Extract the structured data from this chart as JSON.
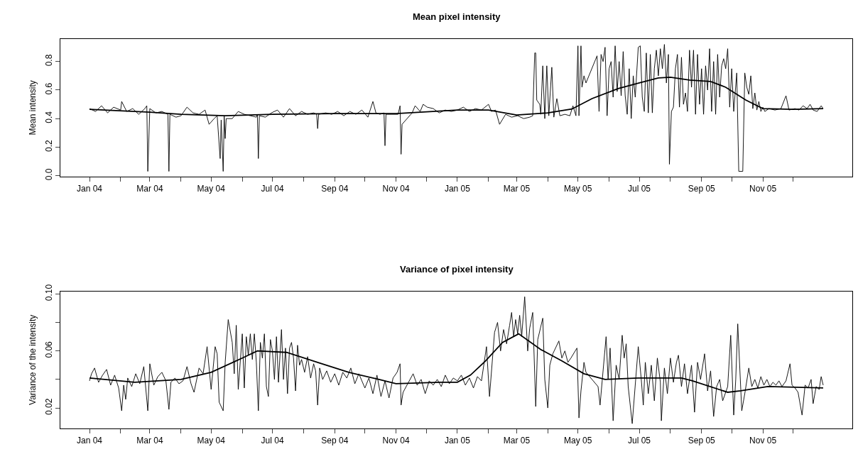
{
  "chart_data": [
    {
      "type": "line",
      "title": "Mean pixel intensity",
      "ylabel": "Mean intensity",
      "xlim": [
        "2003-12-03",
        "2006-01-29"
      ],
      "xticks": [
        {
          "value": "2004-01-01",
          "label": "Jan 04"
        },
        {
          "value": "2004-02-01",
          "label": null
        },
        {
          "value": "2004-03-01",
          "label": "Mar 04"
        },
        {
          "value": "2004-04-01",
          "label": null
        },
        {
          "value": "2004-05-01",
          "label": "May 04"
        },
        {
          "value": "2004-06-01",
          "label": null
        },
        {
          "value": "2004-07-01",
          "label": "Jul 04"
        },
        {
          "value": "2004-08-01",
          "label": null
        },
        {
          "value": "2004-09-01",
          "label": "Sep 04"
        },
        {
          "value": "2004-10-01",
          "label": null
        },
        {
          "value": "2004-11-01",
          "label": "Nov 04"
        },
        {
          "value": "2004-12-01",
          "label": null
        },
        {
          "value": "2005-01-01",
          "label": "Jan 05"
        },
        {
          "value": "2005-02-01",
          "label": null
        },
        {
          "value": "2005-03-01",
          "label": "Mar 05"
        },
        {
          "value": "2005-04-01",
          "label": null
        },
        {
          "value": "2005-05-01",
          "label": "May 05"
        },
        {
          "value": "2005-06-01",
          "label": null
        },
        {
          "value": "2005-07-01",
          "label": "Jul 05"
        },
        {
          "value": "2005-08-01",
          "label": null
        },
        {
          "value": "2005-09-01",
          "label": "Sep 05"
        },
        {
          "value": "2005-10-01",
          "label": null
        },
        {
          "value": "2005-11-01",
          "label": "Nov 05"
        },
        {
          "value": "2005-12-01",
          "label": null
        }
      ],
      "ylim": [
        -0.006,
        0.958
      ],
      "yticks": [
        {
          "value": 0,
          "label": "0.0"
        },
        0.2,
        0.4,
        0.6,
        0.8
      ],
      "series": [
        {
          "color": "#000000",
          "x": [
            "2004-01-01",
            "2004-01-07",
            "2004-01-13",
            "2004-01-19",
            "2004-01-25",
            "2004-02-01",
            "2004-02-02",
            "2004-02-07",
            "2004-02-13",
            "2004-02-19",
            "2004-02-25",
            "2004-02-27",
            "2004-02-28",
            "2004-03-01",
            "2004-03-07",
            "2004-03-13",
            "2004-03-19",
            "2004-03-20",
            "2004-03-21",
            "2004-03-27",
            "2004-04-01",
            "2004-04-07",
            "2004-04-13",
            "2004-04-19",
            "2004-04-25",
            "2004-04-29",
            "2004-05-04",
            "2004-05-07",
            "2004-05-10",
            "2004-05-11",
            "2004-05-13",
            "2004-05-14",
            "2004-05-15",
            "2004-05-16",
            "2004-05-22",
            "2004-05-28",
            "2004-06-03",
            "2004-06-09",
            "2004-06-15",
            "2004-06-16",
            "2004-06-17",
            "2004-06-18",
            "2004-06-24",
            "2004-06-30",
            "2004-07-06",
            "2004-07-12",
            "2004-07-18",
            "2004-07-24",
            "2004-07-30",
            "2004-08-05",
            "2004-08-11",
            "2004-08-14",
            "2004-08-15",
            "2004-08-16",
            "2004-08-23",
            "2004-08-29",
            "2004-09-04",
            "2004-09-10",
            "2004-09-16",
            "2004-09-22",
            "2004-09-28",
            "2004-10-04",
            "2004-10-09",
            "2004-10-12",
            "2004-10-16",
            "2004-10-20",
            "2004-10-21",
            "2004-10-22",
            "2004-10-28",
            "2004-11-03",
            "2004-11-05",
            "2004-11-06",
            "2004-11-07",
            "2004-11-17",
            "2004-11-20",
            "2004-11-25",
            "2004-11-28",
            "2004-12-02",
            "2004-12-08",
            "2004-12-14",
            "2004-12-20",
            "2004-12-26",
            "2005-01-01",
            "2005-01-07",
            "2005-01-13",
            "2005-01-19",
            "2005-01-25",
            "2005-02-01",
            "2005-02-04",
            "2005-02-08",
            "2005-02-12",
            "2005-02-18",
            "2005-02-24",
            "2005-03-02",
            "2005-03-08",
            "2005-03-14",
            "2005-03-17",
            "2005-03-19",
            "2005-03-20",
            "2005-03-21",
            "2005-03-24",
            "2005-03-25",
            "2005-03-27",
            "2005-03-29",
            "2005-03-31",
            "2005-04-02",
            "2005-04-05",
            "2005-04-07",
            "2005-04-10",
            "2005-04-13",
            "2005-04-18",
            "2005-04-23",
            "2005-04-26",
            "2005-04-29",
            "2005-05-01",
            "2005-05-02",
            "2005-05-04",
            "2005-05-05",
            "2005-05-07",
            "2005-05-09",
            "2005-05-20",
            "2005-05-22",
            "2005-05-24",
            "2005-05-26",
            "2005-05-28",
            "2005-05-30",
            "2005-06-01",
            "2005-06-03",
            "2005-06-05",
            "2005-06-07",
            "2005-06-09",
            "2005-06-11",
            "2005-06-13",
            "2005-06-15",
            "2005-06-17",
            "2005-06-19",
            "2005-06-21",
            "2005-06-23",
            "2005-06-25",
            "2005-06-27",
            "2005-06-30",
            "2005-07-02",
            "2005-07-04",
            "2005-07-06",
            "2005-07-08",
            "2005-07-10",
            "2005-07-12",
            "2005-07-14",
            "2005-07-16",
            "2005-07-18",
            "2005-07-20",
            "2005-07-22",
            "2005-07-24",
            "2005-07-26",
            "2005-07-28",
            "2005-07-30",
            "2005-07-31",
            "2005-08-02",
            "2005-08-04",
            "2005-08-06",
            "2005-08-08",
            "2005-08-10",
            "2005-08-12",
            "2005-08-14",
            "2005-08-16",
            "2005-08-18",
            "2005-08-20",
            "2005-08-22",
            "2005-08-24",
            "2005-08-26",
            "2005-08-28",
            "2005-08-30",
            "2005-09-01",
            "2005-09-03",
            "2005-09-05",
            "2005-09-07",
            "2005-09-09",
            "2005-09-11",
            "2005-09-13",
            "2005-09-15",
            "2005-09-17",
            "2005-09-19",
            "2005-09-21",
            "2005-09-23",
            "2005-09-25",
            "2005-09-27",
            "2005-09-29",
            "2005-10-01",
            "2005-10-03",
            "2005-10-06",
            "2005-10-08",
            "2005-10-12",
            "2005-10-14",
            "2005-10-16",
            "2005-10-18",
            "2005-10-20",
            "2005-10-22",
            "2005-10-24",
            "2005-10-26",
            "2005-10-28",
            "2005-10-30",
            "2005-11-01",
            "2005-11-03",
            "2005-11-07",
            "2005-11-13",
            "2005-11-19",
            "2005-11-24",
            "2005-11-27",
            "2005-12-03",
            "2005-12-07",
            "2005-12-11",
            "2005-12-15",
            "2005-12-18",
            "2005-12-21",
            "2005-12-25",
            "2005-12-29",
            "2005-12-31"
          ],
          "values": [
            0.47,
            0.45,
            0.49,
            0.44,
            0.48,
            0.46,
            0.52,
            0.45,
            0.47,
            0.43,
            0.47,
            0.49,
            0.03,
            0.47,
            0.44,
            0.45,
            0.43,
            0.03,
            0.43,
            0.41,
            0.42,
            0.48,
            0.44,
            0.43,
            0.46,
            0.36,
            0.4,
            0.42,
            0.12,
            0.39,
            0.03,
            0.42,
            0.26,
            0.4,
            0.4,
            0.45,
            0.43,
            0.42,
            0.41,
            0.43,
            0.12,
            0.42,
            0.41,
            0.44,
            0.46,
            0.41,
            0.47,
            0.42,
            0.45,
            0.43,
            0.44,
            0.43,
            0.33,
            0.43,
            0.44,
            0.43,
            0.45,
            0.42,
            0.45,
            0.43,
            0.46,
            0.41,
            0.52,
            0.44,
            0.43,
            0.44,
            0.21,
            0.43,
            0.43,
            0.43,
            0.49,
            0.15,
            0.36,
            0.44,
            0.49,
            0.45,
            0.5,
            0.48,
            0.47,
            0.44,
            0.46,
            0.45,
            0.46,
            0.48,
            0.45,
            0.47,
            0.46,
            0.5,
            0.45,
            0.46,
            0.36,
            0.43,
            0.41,
            0.42,
            0.4,
            0.41,
            0.42,
            0.86,
            0.86,
            0.53,
            0.5,
            0.43,
            0.77,
            0.4,
            0.77,
            0.42,
            0.76,
            0.41,
            0.54,
            0.42,
            0.43,
            0.42,
            0.49,
            0.42,
            0.91,
            0.42,
            0.91,
            0.62,
            0.7,
            0.65,
            0.84,
            0.45,
            0.85,
            0.8,
            0.9,
            0.42,
            0.75,
            0.8,
            0.55,
            0.91,
            0.59,
            0.8,
            0.56,
            0.87,
            0.56,
            0.43,
            0.75,
            0.4,
            0.7,
            0.55,
            0.9,
            0.91,
            0.55,
            0.45,
            0.86,
            0.44,
            0.85,
            0.44,
            0.75,
            0.88,
            0.7,
            0.89,
            0.75,
            0.92,
            0.65,
            0.85,
            0.08,
            0.45,
            0.48,
            0.75,
            0.85,
            0.48,
            0.83,
            0.5,
            0.58,
            0.45,
            0.88,
            0.62,
            0.88,
            0.43,
            0.85,
            0.5,
            0.75,
            0.43,
            0.77,
            0.6,
            0.89,
            0.45,
            0.8,
            0.43,
            0.85,
            0.55,
            0.77,
            0.82,
            0.75,
            0.89,
            0.48,
            0.75,
            0.45,
            0.72,
            0.03,
            0.03,
            0.72,
            0.62,
            0.57,
            0.7,
            0.47,
            0.58,
            0.46,
            0.52,
            0.45,
            0.48,
            0.45,
            0.47,
            0.46,
            0.47,
            0.56,
            0.46,
            0.47,
            0.46,
            0.49,
            0.47,
            0.5,
            0.46,
            0.45,
            0.49,
            0.47
          ]
        },
        {
          "color": "#000000",
          "x": [
            "2004-01-01",
            "2004-03-01",
            "2004-04-01",
            "2004-05-15",
            "2004-07-01",
            "2004-09-01",
            "2004-11-01",
            "2005-01-01",
            "2005-02-01",
            "2005-03-01",
            "2005-04-01",
            "2005-04-25",
            "2005-05-15",
            "2005-06-10",
            "2005-07-01",
            "2005-07-20",
            "2005-08-01",
            "2005-08-20",
            "2005-09-10",
            "2005-09-25",
            "2005-10-15",
            "2005-11-01",
            "2005-12-01",
            "2005-12-31"
          ],
          "values": [
            0.465,
            0.445,
            0.43,
            0.42,
            0.43,
            0.435,
            0.435,
            0.46,
            0.46,
            0.425,
            0.44,
            0.467,
            0.54,
            0.61,
            0.65,
            0.685,
            0.69,
            0.67,
            0.66,
            0.62,
            0.53,
            0.47,
            0.465,
            0.47
          ]
        }
      ]
    },
    {
      "type": "line",
      "title": "Variance of pixel intensity",
      "ylabel": "Variance of the intensity",
      "xlim": [
        "2003-12-03",
        "2006-01-29"
      ],
      "xticks": [
        {
          "value": "2004-01-01",
          "label": "Jan 04"
        },
        {
          "value": "2004-02-01",
          "label": null
        },
        {
          "value": "2004-03-01",
          "label": "Mar 04"
        },
        {
          "value": "2004-04-01",
          "label": null
        },
        {
          "value": "2004-05-01",
          "label": "May 04"
        },
        {
          "value": "2004-06-01",
          "label": null
        },
        {
          "value": "2004-07-01",
          "label": "Jul 04"
        },
        {
          "value": "2004-08-01",
          "label": null
        },
        {
          "value": "2004-09-01",
          "label": "Sep 04"
        },
        {
          "value": "2004-10-01",
          "label": null
        },
        {
          "value": "2004-11-01",
          "label": "Nov 04"
        },
        {
          "value": "2004-12-01",
          "label": null
        },
        {
          "value": "2005-01-01",
          "label": "Jan 05"
        },
        {
          "value": "2005-02-01",
          "label": null
        },
        {
          "value": "2005-03-01",
          "label": "Mar 05"
        },
        {
          "value": "2005-04-01",
          "label": null
        },
        {
          "value": "2005-05-01",
          "label": "May 05"
        },
        {
          "value": "2005-06-01",
          "label": null
        },
        {
          "value": "2005-07-01",
          "label": "Jul 05"
        },
        {
          "value": "2005-08-01",
          "label": null
        },
        {
          "value": "2005-09-01",
          "label": "Sep 05"
        },
        {
          "value": "2005-10-01",
          "label": null
        },
        {
          "value": "2005-11-01",
          "label": "Nov 05"
        },
        {
          "value": "2005-12-01",
          "label": null
        }
      ],
      "ylim": [
        0.0056,
        0.1018
      ],
      "yticks": [
        0.02,
        {
          "value": 0.04,
          "label": null
        },
        0.06,
        {
          "value": 0.08,
          "label": null
        },
        {
          "value": 0.1,
          "label": "0.10"
        }
      ],
      "series": [
        {
          "color": "#000000",
          "x": [
            "2004-01-01",
            "2004-01-03",
            "2004-01-06",
            "2004-01-10",
            "2004-01-14",
            "2004-01-18",
            "2004-01-22",
            "2004-01-26",
            "2004-01-30",
            "2004-02-02",
            "2004-02-04",
            "2004-02-06",
            "2004-02-08",
            "2004-02-12",
            "2004-02-16",
            "2004-02-20",
            "2004-02-24",
            "2004-02-28",
            "2004-03-01",
            "2004-03-05",
            "2004-03-09",
            "2004-03-13",
            "2004-03-17",
            "2004-03-20",
            "2004-03-22",
            "2004-03-26",
            "2004-03-30",
            "2004-04-03",
            "2004-04-07",
            "2004-04-11",
            "2004-04-14",
            "2004-04-19",
            "2004-04-23",
            "2004-04-27",
            "2004-05-01",
            "2004-05-05",
            "2004-05-07",
            "2004-05-09",
            "2004-05-13",
            "2004-05-15",
            "2004-05-18",
            "2004-05-22",
            "2004-05-24",
            "2004-05-26",
            "2004-05-28",
            "2004-06-01",
            "2004-06-03",
            "2004-06-05",
            "2004-06-07",
            "2004-06-09",
            "2004-06-11",
            "2004-06-13",
            "2004-06-15",
            "2004-06-17",
            "2004-06-19",
            "2004-06-21",
            "2004-06-23",
            "2004-06-25",
            "2004-06-27",
            "2004-06-29",
            "2004-07-01",
            "2004-07-03",
            "2004-07-05",
            "2004-07-07",
            "2004-07-10",
            "2004-07-12",
            "2004-07-14",
            "2004-07-16",
            "2004-07-18",
            "2004-07-20",
            "2004-07-22",
            "2004-07-24",
            "2004-07-26",
            "2004-07-28",
            "2004-07-30",
            "2004-08-02",
            "2004-08-05",
            "2004-08-08",
            "2004-08-11",
            "2004-08-13",
            "2004-08-15",
            "2004-08-17",
            "2004-08-20",
            "2004-08-24",
            "2004-08-28",
            "2004-09-01",
            "2004-09-05",
            "2004-09-09",
            "2004-09-13",
            "2004-09-17",
            "2004-09-21",
            "2004-09-25",
            "2004-10-01",
            "2004-10-05",
            "2004-10-09",
            "2004-10-13",
            "2004-10-17",
            "2004-10-21",
            "2004-10-25",
            "2004-10-29",
            "2004-11-02",
            "2004-11-05",
            "2004-11-06",
            "2004-11-08",
            "2004-11-18",
            "2004-11-22",
            "2004-11-26",
            "2004-11-30",
            "2004-12-04",
            "2004-12-08",
            "2004-12-12",
            "2004-12-16",
            "2004-12-20",
            "2004-12-24",
            "2004-12-28",
            "2005-01-01",
            "2005-01-05",
            "2005-01-09",
            "2005-01-13",
            "2005-01-17",
            "2005-01-21",
            "2005-01-25",
            "2005-01-30",
            "2005-02-02",
            "2005-02-07",
            "2005-02-10",
            "2005-02-13",
            "2005-02-16",
            "2005-02-19",
            "2005-02-22",
            "2005-02-24",
            "2005-02-26",
            "2005-02-28",
            "2005-03-02",
            "2005-03-04",
            "2005-03-06",
            "2005-03-09",
            "2005-03-12",
            "2005-03-14",
            "2005-03-17",
            "2005-03-20",
            "2005-03-22",
            "2005-03-27",
            "2005-03-29",
            "2005-04-01",
            "2005-04-03",
            "2005-04-06",
            "2005-04-12",
            "2005-04-15",
            "2005-04-18",
            "2005-04-21",
            "2005-04-24",
            "2005-04-30",
            "2005-05-02",
            "2005-05-04",
            "2005-05-07",
            "2005-05-09",
            "2005-05-21",
            "2005-05-23",
            "2005-05-29",
            "2005-05-31",
            "2005-06-02",
            "2005-06-05",
            "2005-06-08",
            "2005-06-11",
            "2005-06-14",
            "2005-06-16",
            "2005-06-18",
            "2005-06-20",
            "2005-06-24",
            "2005-06-30",
            "2005-07-03",
            "2005-07-05",
            "2005-07-07",
            "2005-07-10",
            "2005-07-13",
            "2005-07-16",
            "2005-07-19",
            "2005-07-22",
            "2005-07-23",
            "2005-07-26",
            "2005-07-29",
            "2005-08-01",
            "2005-08-04",
            "2005-08-07",
            "2005-08-09",
            "2005-08-12",
            "2005-08-15",
            "2005-08-18",
            "2005-08-22",
            "2005-08-25",
            "2005-08-28",
            "2005-08-31",
            "2005-09-04",
            "2005-09-07",
            "2005-09-10",
            "2005-09-13",
            "2005-09-16",
            "2005-09-19",
            "2005-09-22",
            "2005-09-27",
            "2005-09-30",
            "2005-10-03",
            "2005-10-05",
            "2005-10-07",
            "2005-10-11",
            "2005-10-14",
            "2005-10-18",
            "2005-10-21",
            "2005-10-24",
            "2005-10-27",
            "2005-10-30",
            "2005-11-02",
            "2005-11-05",
            "2005-11-08",
            "2005-11-11",
            "2005-11-14",
            "2005-11-17",
            "2005-11-20",
            "2005-11-24",
            "2005-11-28",
            "2005-11-30",
            "2005-12-03",
            "2005-12-06",
            "2005-12-10",
            "2005-12-13",
            "2005-12-16",
            "2005-12-19",
            "2005-12-21",
            "2005-12-24",
            "2005-12-27",
            "2005-12-29",
            "2005-12-31"
          ],
          "values": [
            0.039,
            0.044,
            0.048,
            0.038,
            0.043,
            0.047,
            0.036,
            0.043,
            0.034,
            0.018,
            0.036,
            0.026,
            0.041,
            0.035,
            0.044,
            0.037,
            0.049,
            0.018,
            0.051,
            0.036,
            0.042,
            0.045,
            0.039,
            0.019,
            0.038,
            0.041,
            0.037,
            0.039,
            0.049,
            0.037,
            0.031,
            0.048,
            0.044,
            0.063,
            0.033,
            0.063,
            0.058,
            0.024,
            0.018,
            0.052,
            0.082,
            0.066,
            0.044,
            0.078,
            0.033,
            0.072,
            0.034,
            0.07,
            0.057,
            0.072,
            0.054,
            0.072,
            0.052,
            0.018,
            0.066,
            0.055,
            0.072,
            0.035,
            0.028,
            0.068,
            0.06,
            0.04,
            0.07,
            0.038,
            0.075,
            0.04,
            0.062,
            0.03,
            0.062,
            0.066,
            0.055,
            0.032,
            0.064,
            0.05,
            0.054,
            0.045,
            0.056,
            0.041,
            0.051,
            0.046,
            0.022,
            0.048,
            0.04,
            0.046,
            0.038,
            0.044,
            0.036,
            0.045,
            0.041,
            0.048,
            0.037,
            0.044,
            0.034,
            0.041,
            0.03,
            0.043,
            0.028,
            0.039,
            0.027,
            0.041,
            0.045,
            0.051,
            0.022,
            0.031,
            0.044,
            0.036,
            0.04,
            0.03,
            0.039,
            0.036,
            0.04,
            0.035,
            0.043,
            0.037,
            0.041,
            0.039,
            0.043,
            0.036,
            0.041,
            0.034,
            0.042,
            0.039,
            0.063,
            0.028,
            0.073,
            0.08,
            0.06,
            0.075,
            0.065,
            0.078,
            0.087,
            0.07,
            0.082,
            0.072,
            0.085,
            0.07,
            0.098,
            0.06,
            0.076,
            0.087,
            0.021,
            0.068,
            0.083,
            0.04,
            0.02,
            0.05,
            0.058,
            0.067,
            0.055,
            0.06,
            0.052,
            0.055,
            0.062,
            0.013,
            0.032,
            0.052,
            0.045,
            0.035,
            0.022,
            0.07,
            0.04,
            0.062,
            0.011,
            0.05,
            0.04,
            0.071,
            0.055,
            0.065,
            0.035,
            0.009,
            0.063,
            0.04,
            0.022,
            0.052,
            0.03,
            0.05,
            0.025,
            0.055,
            0.038,
            0.011,
            0.048,
            0.03,
            0.055,
            0.038,
            0.052,
            0.057,
            0.035,
            0.051,
            0.03,
            0.05,
            0.017,
            0.052,
            0.04,
            0.058,
            0.032,
            0.046,
            0.014,
            0.035,
            0.04,
            0.025,
            0.035,
            0.071,
            0.015,
            0.04,
            0.079,
            0.018,
            0.03,
            0.048,
            0.035,
            0.04,
            0.034,
            0.042,
            0.036,
            0.04,
            0.035,
            0.038,
            0.036,
            0.039,
            0.035,
            0.039,
            0.051,
            0.036,
            0.034,
            0.031,
            0.015,
            0.036,
            0.034,
            0.04,
            0.023,
            0.035,
            0.033,
            0.042,
            0.036
          ]
        },
        {
          "color": "#000000",
          "x": [
            "2004-01-01",
            "2004-02-15",
            "2004-04-01",
            "2004-05-01",
            "2004-06-01",
            "2004-06-16",
            "2004-07-15",
            "2004-08-15",
            "2004-09-15",
            "2004-10-15",
            "2004-11-01",
            "2004-12-15",
            "2005-01-01",
            "2005-01-14",
            "2005-01-29",
            "2005-02-15",
            "2005-03-03",
            "2005-03-25",
            "2005-04-15",
            "2005-05-07",
            "2005-05-28",
            "2005-06-30",
            "2005-08-12",
            "2005-08-23",
            "2005-09-27",
            "2005-10-10",
            "2005-11-06",
            "2005-12-31"
          ],
          "values": [
            0.041,
            0.038,
            0.04,
            0.045,
            0.055,
            0.06,
            0.059,
            0.052,
            0.045,
            0.04,
            0.037,
            0.038,
            0.038,
            0.043,
            0.053,
            0.066,
            0.072,
            0.061,
            0.053,
            0.044,
            0.04,
            0.041,
            0.041,
            0.039,
            0.031,
            0.032,
            0.035,
            0.034
          ]
        }
      ]
    }
  ]
}
